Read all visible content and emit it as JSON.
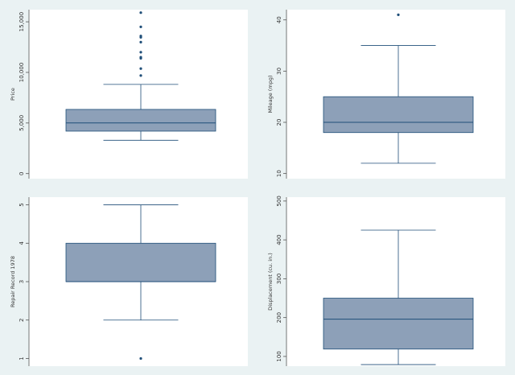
{
  "chart_data": [
    {
      "type": "box",
      "ylabel": "Price",
      "ylim": [
        -500,
        16200
      ],
      "yticks": [
        0,
        5000,
        10000,
        15000
      ],
      "ytick_labels": [
        "0",
        "5,000",
        "10,000",
        "15,000"
      ],
      "box": {
        "min": 3291,
        "q1": 4195,
        "median": 5006,
        "q3": 6342,
        "max": 8814
      },
      "outliers": [
        9690,
        10372,
        11385,
        11497,
        11995,
        12990,
        13466,
        13594,
        14500,
        15906
      ],
      "colors": {
        "box": "#8da0b8",
        "line": "#1f4e78"
      }
    },
    {
      "type": "box",
      "ylabel": "Mileage (mpg)",
      "ylim": [
        9,
        42
      ],
      "yticks": [
        10,
        20,
        30,
        40
      ],
      "ytick_labels": [
        "10",
        "20",
        "30",
        "40"
      ],
      "box": {
        "min": 12,
        "q1": 18,
        "median": 20,
        "q3": 25,
        "max": 35
      },
      "outliers": [
        41
      ],
      "colors": {
        "box": "#8da0b8",
        "line": "#1f4e78"
      }
    },
    {
      "type": "box",
      "ylabel": "Repair Record 1978",
      "ylim": [
        0.8,
        5.2
      ],
      "yticks": [
        1,
        2,
        3,
        4,
        5
      ],
      "ytick_labels": [
        "1",
        "2",
        "3",
        "4",
        "5"
      ],
      "box": {
        "min": 2,
        "q1": 3,
        "median": 3,
        "q3": 4,
        "max": 5
      },
      "outliers": [
        1
      ],
      "colors": {
        "box": "#8da0b8",
        "line": "#1f4e78"
      }
    },
    {
      "type": "box",
      "ylabel": "Displacement (cu. in.)",
      "ylim": [
        75,
        510
      ],
      "yticks": [
        100,
        200,
        300,
        400,
        500
      ],
      "ytick_labels": [
        "100",
        "200",
        "300",
        "400",
        "500"
      ],
      "box": {
        "min": 79,
        "q1": 119,
        "median": 196,
        "q3": 250,
        "max": 425
      },
      "outliers": [],
      "colors": {
        "box": "#8da0b8",
        "line": "#1f4e78"
      }
    }
  ],
  "style": {
    "background": "#eaf2f3",
    "plot_background": "#ffffff",
    "axis_color": "#555555"
  }
}
